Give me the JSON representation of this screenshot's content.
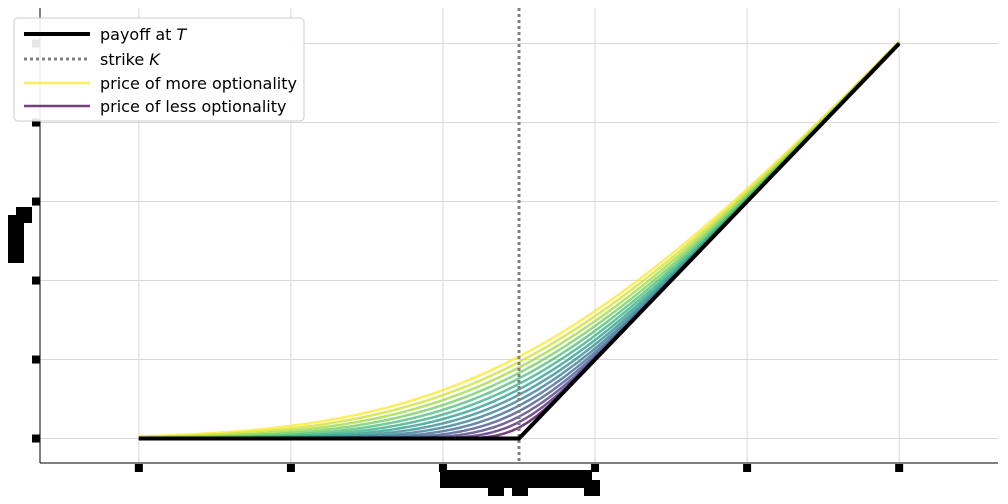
{
  "chart_data": {
    "type": "line",
    "title": "",
    "xlabel": "",
    "ylabel": "",
    "xlim": [
      -1.26,
      1.26
    ],
    "ylim": [
      -0.062,
      1.09
    ],
    "x_ticks": [
      -1.0,
      -0.6,
      -0.2,
      0.2,
      0.6,
      1.0
    ],
    "y_ticks": [
      0.0,
      0.2,
      0.4,
      0.6,
      0.8,
      1.0
    ],
    "tick_labels_obscured": true,
    "strike": 0.0,
    "grid": true,
    "legend_position": "top-left",
    "colormap": "viridis",
    "n_price_curves": 14,
    "sigma_min": 0.07,
    "sigma_max": 0.52,
    "sample_points": {
      "x": [
        -1.0,
        -0.6,
        -0.2,
        0.0,
        0.2,
        0.6,
        1.0
      ],
      "payoff": [
        0.0,
        0.0,
        0.0,
        0.0,
        0.2,
        0.6,
        1.0
      ],
      "price_most_optionality": [
        0.033,
        0.079,
        0.15,
        0.28,
        0.38,
        0.68,
        1.03
      ],
      "price_least_optionality": [
        0.0,
        0.0,
        0.0,
        0.08,
        0.2,
        0.6,
        1.0
      ]
    },
    "series": [
      {
        "name": "payoff at T",
        "color": "#000000",
        "style": "solid"
      },
      {
        "name": "strike K",
        "color": "#808080",
        "style": "dotted"
      },
      {
        "name": "price of more optionality",
        "color": "#fde725",
        "style": "solid"
      },
      {
        "name": "price of less optionality",
        "color": "#440154",
        "style": "solid"
      }
    ]
  },
  "legend": {
    "payoff_prefix": "payoff at ",
    "payoff_var": "T",
    "strike_prefix": "strike ",
    "strike_var": "K",
    "more": "price of more optionality",
    "less": "price of less optionality"
  }
}
